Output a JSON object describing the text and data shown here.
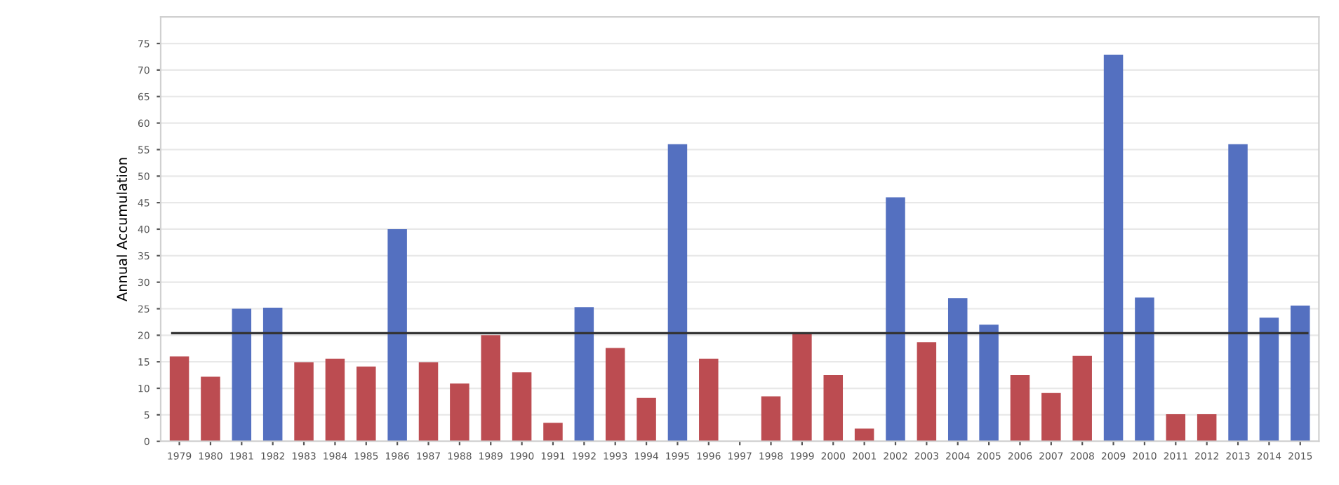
{
  "chart_data": {
    "type": "bar",
    "ylabel": "Annual Accumulation",
    "categories": [
      "1979",
      "1980",
      "1981",
      "1982",
      "1983",
      "1984",
      "1985",
      "1986",
      "1987",
      "1988",
      "1989",
      "1990",
      "1991",
      "1992",
      "1993",
      "1994",
      "1995",
      "1996",
      "1997",
      "1998",
      "1999",
      "2000",
      "2001",
      "2002",
      "2003",
      "2004",
      "2005",
      "2006",
      "2007",
      "2008",
      "2009",
      "2010",
      "2011",
      "2012",
      "2013",
      "2014",
      "2015"
    ],
    "values": [
      16,
      12.2,
      25,
      25.2,
      14.9,
      15.6,
      14.1,
      40,
      14.9,
      10.9,
      20,
      13,
      3.5,
      25.3,
      17.6,
      8.2,
      56,
      15.6,
      0,
      8.5,
      20.4,
      12.5,
      2.4,
      46,
      18.7,
      27,
      22,
      12.5,
      9.1,
      16.1,
      72.9,
      27.1,
      5.1,
      5.1,
      56,
      23.3,
      25.6
    ],
    "colors": [
      "#bc4c51",
      "#bc4c51",
      "#5470c0",
      "#5470c0",
      "#bc4c51",
      "#bc4c51",
      "#bc4c51",
      "#5470c0",
      "#bc4c51",
      "#bc4c51",
      "#bc4c51",
      "#bc4c51",
      "#bc4c51",
      "#5470c0",
      "#bc4c51",
      "#bc4c51",
      "#5470c0",
      "#bc4c51",
      "#bc4c51",
      "#bc4c51",
      "#bc4c51",
      "#bc4c51",
      "#bc4c51",
      "#5470c0",
      "#bc4c51",
      "#5470c0",
      "#5470c0",
      "#bc4c51",
      "#bc4c51",
      "#bc4c51",
      "#5470c0",
      "#5470c0",
      "#bc4c51",
      "#bc4c51",
      "#5470c0",
      "#5470c0",
      "#5470c0"
    ],
    "ylim": [
      0,
      80
    ],
    "yticks": [
      0,
      5,
      10,
      15,
      20,
      25,
      30,
      35,
      40,
      45,
      50,
      55,
      60,
      65,
      70,
      75
    ],
    "grid": "y",
    "ref_lines": [
      {
        "axis": "y",
        "value": 20.4,
        "color": "#333333",
        "line_style": "solid"
      }
    ]
  }
}
